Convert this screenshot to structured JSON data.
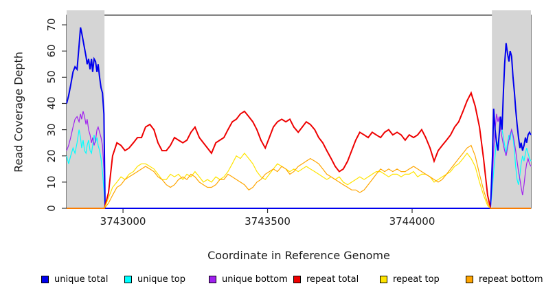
{
  "figure": {
    "background": "#ffffff"
  },
  "chart_data": {
    "type": "line",
    "title": "",
    "xlabel": "Coordinate in Reference Genome",
    "ylabel": "Read Coverage Depth",
    "xlim": [
      3742805,
      3744411
    ],
    "ylim": [
      0,
      73.7
    ],
    "xticks": [
      3743000,
      3743500,
      3744000
    ],
    "yticks": [
      0,
      10,
      20,
      30,
      40,
      50,
      60,
      70
    ],
    "grid": false,
    "legend_position": "bottom",
    "axis_color": "#000000",
    "shade_color": "#d5d5d5",
    "shaded_regions": [
      [
        3742805,
        3742936
      ],
      [
        3744276,
        3744411
      ]
    ],
    "series": [
      {
        "name": "unique total",
        "color": "#0000ee",
        "z": 3,
        "line_width": 2,
        "x": [
          3742805,
          3742812,
          3742819,
          3742827,
          3742834,
          3742841,
          3742848,
          3742853,
          3742857,
          3742862,
          3742867,
          3742872,
          3742876,
          3742881,
          3742886,
          3742891,
          3742895,
          3742900,
          3742905,
          3742910,
          3742914,
          3742919,
          3742924,
          3742929,
          3742934,
          3742938,
          3744271,
          3744278,
          3744282,
          3744287,
          3744292,
          3744297,
          3744301,
          3744306,
          3744311,
          3744316,
          3744320,
          3744325,
          3744330,
          3744335,
          3744339,
          3744344,
          3744349,
          3744354,
          3744358,
          3744363,
          3744368,
          3744373,
          3744377,
          3744382,
          3744387,
          3744392,
          3744396,
          3744401,
          3744406,
          3744411
        ],
        "y": [
          40,
          43,
          47,
          52,
          54,
          53,
          62,
          69,
          67,
          64,
          61,
          58,
          55,
          57,
          53,
          57,
          52,
          57,
          56,
          52,
          55,
          50,
          46,
          44,
          36,
          0,
          0,
          20,
          38,
          30,
          25,
          22,
          28,
          35,
          30,
          45,
          55,
          63,
          59,
          56,
          60,
          58,
          50,
          44,
          38,
          32,
          27,
          23,
          25,
          22,
          24,
          27,
          25,
          28,
          29,
          28
        ]
      },
      {
        "name": "unique top",
        "color": "#00ffff",
        "z": 1,
        "line_width": 1.2,
        "x": [
          3742805,
          3742812,
          3742819,
          3742827,
          3742834,
          3742841,
          3742848,
          3742853,
          3742857,
          3742862,
          3742867,
          3742872,
          3742876,
          3742881,
          3742886,
          3742891,
          3742895,
          3742900,
          3742905,
          3742910,
          3742914,
          3742919,
          3742924,
          3742929,
          3742934,
          3742938,
          3744271,
          3744278,
          3744282,
          3744287,
          3744292,
          3744297,
          3744301,
          3744306,
          3744311,
          3744316,
          3744320,
          3744325,
          3744330,
          3744335,
          3744339,
          3744344,
          3744349,
          3744354,
          3744358,
          3744363,
          3744368,
          3744373,
          3744377,
          3744382,
          3744387,
          3744392,
          3744396,
          3744401,
          3744406,
          3744411
        ],
        "y": [
          20,
          17,
          20,
          23,
          21,
          25,
          30,
          27,
          23,
          26,
          22,
          21,
          24,
          26,
          22,
          21,
          24,
          28,
          25,
          27,
          24,
          22,
          19,
          14,
          7,
          0,
          0,
          8,
          14,
          20,
          26,
          24,
          29,
          32,
          30,
          27,
          24,
          21,
          25,
          28,
          26,
          30,
          27,
          22,
          16,
          11,
          9,
          13,
          17,
          20,
          18,
          21,
          23,
          21,
          19,
          18
        ]
      },
      {
        "name": "unique bottom",
        "color": "#a020f0",
        "z": 2,
        "line_width": 1.2,
        "x": [
          3742805,
          3742812,
          3742819,
          3742827,
          3742834,
          3742841,
          3742848,
          3742853,
          3742857,
          3742862,
          3742867,
          3742872,
          3742876,
          3742881,
          3742886,
          3742891,
          3742895,
          3742900,
          3742905,
          3742910,
          3742914,
          3742919,
          3742924,
          3742929,
          3742934,
          3742938,
          3744271,
          3744278,
          3744282,
          3744287,
          3744292,
          3744297,
          3744301,
          3744306,
          3744311,
          3744316,
          3744320,
          3744325,
          3744330,
          3744335,
          3744339,
          3744344,
          3744349,
          3744354,
          3744358,
          3744363,
          3744368,
          3744373,
          3744377,
          3744382,
          3744387,
          3744392,
          3744396,
          3744401,
          3744406,
          3744411
        ],
        "y": [
          22,
          24,
          27,
          31,
          34,
          35,
          33,
          36,
          34,
          37,
          35,
          32,
          34,
          30,
          28,
          25,
          27,
          24,
          26,
          30,
          31,
          29,
          27,
          24,
          15,
          0,
          0,
          12,
          22,
          30,
          36,
          33,
          35,
          30,
          27,
          24,
          22,
          20,
          23,
          26,
          28,
          30,
          28,
          25,
          22,
          18,
          14,
          11,
          8,
          5,
          9,
          14,
          17,
          19,
          17,
          16
        ]
      },
      {
        "name": "repeat total",
        "color": "#ee0000",
        "z": 4,
        "line_width": 2,
        "x": [
          3742805,
          3742936,
          3742950,
          3742964,
          3742979,
          3742993,
          3743007,
          3743021,
          3743036,
          3743050,
          3743064,
          3743078,
          3743093,
          3743107,
          3743121,
          3743135,
          3743150,
          3743164,
          3743178,
          3743192,
          3743207,
          3743221,
          3743235,
          3743249,
          3743264,
          3743278,
          3743292,
          3743306,
          3743321,
          3743335,
          3743349,
          3743363,
          3743378,
          3743392,
          3743406,
          3743420,
          3743435,
          3743449,
          3743463,
          3743477,
          3743492,
          3743506,
          3743520,
          3743534,
          3743549,
          3743563,
          3743577,
          3743591,
          3743606,
          3743620,
          3743634,
          3743648,
          3743663,
          3743677,
          3743691,
          3743705,
          3743720,
          3743734,
          3743748,
          3743762,
          3743777,
          3743791,
          3743805,
          3743819,
          3743834,
          3743848,
          3743862,
          3743876,
          3743891,
          3743905,
          3743919,
          3743933,
          3743948,
          3743962,
          3743976,
          3743990,
          3744005,
          3744019,
          3744033,
          3744047,
          3744062,
          3744076,
          3744090,
          3744104,
          3744119,
          3744133,
          3744147,
          3744161,
          3744176,
          3744190,
          3744204,
          3744218,
          3744233,
          3744247,
          3744261,
          3744271,
          3744273,
          3744411
        ],
        "y": [
          0,
          0,
          6,
          20,
          25,
          24,
          22,
          23,
          25,
          27,
          27,
          31,
          32,
          30,
          25,
          22,
          22,
          24,
          27,
          26,
          25,
          26,
          29,
          31,
          27,
          25,
          23,
          21,
          25,
          26,
          27,
          30,
          33,
          34,
          36,
          37,
          35,
          33,
          30,
          26,
          23,
          27,
          31,
          33,
          34,
          33,
          34,
          31,
          29,
          31,
          33,
          32,
          30,
          27,
          25,
          22,
          19,
          16,
          14,
          15,
          18,
          22,
          26,
          29,
          28,
          27,
          29,
          28,
          27,
          29,
          30,
          28,
          29,
          28,
          26,
          28,
          27,
          28,
          30,
          27,
          23,
          18,
          22,
          24,
          26,
          28,
          31,
          33,
          37,
          41,
          44,
          39,
          31,
          19,
          5,
          0,
          0,
          0
        ]
      },
      {
        "name": "repeat top",
        "color": "#ffe400",
        "z": 5,
        "line_width": 1.2,
        "x": [
          3742805,
          3742936,
          3742950,
          3742964,
          3742979,
          3742993,
          3743007,
          3743021,
          3743036,
          3743050,
          3743064,
          3743078,
          3743093,
          3743107,
          3743121,
          3743135,
          3743150,
          3743164,
          3743178,
          3743192,
          3743207,
          3743221,
          3743235,
          3743249,
          3743264,
          3743278,
          3743292,
          3743306,
          3743321,
          3743335,
          3743349,
          3743363,
          3743378,
          3743392,
          3743406,
          3743420,
          3743435,
          3743449,
          3743463,
          3743477,
          3743492,
          3743506,
          3743520,
          3743534,
          3743549,
          3743563,
          3743577,
          3743591,
          3743606,
          3743620,
          3743634,
          3743648,
          3743663,
          3743677,
          3743691,
          3743705,
          3743720,
          3743734,
          3743748,
          3743762,
          3743777,
          3743791,
          3743805,
          3743819,
          3743834,
          3743848,
          3743862,
          3743876,
          3743891,
          3743905,
          3743919,
          3743933,
          3743948,
          3743962,
          3743976,
          3743990,
          3744005,
          3744019,
          3744033,
          3744047,
          3744062,
          3744076,
          3744090,
          3744104,
          3744119,
          3744133,
          3744147,
          3744161,
          3744176,
          3744190,
          3744204,
          3744218,
          3744233,
          3744247,
          3744261,
          3744271,
          3744273,
          3744411
        ],
        "y": [
          0,
          0,
          4,
          8,
          10,
          12,
          11,
          13,
          14,
          16,
          17,
          17,
          16,
          15,
          13,
          11,
          11,
          13,
          12,
          13,
          11,
          13,
          12,
          14,
          12,
          10,
          11,
          10,
          12,
          11,
          12,
          14,
          17,
          20,
          19,
          21,
          19,
          17,
          14,
          12,
          11,
          13,
          15,
          17,
          16,
          15,
          14,
          15,
          14,
          15,
          16,
          15,
          14,
          13,
          12,
          11,
          12,
          11,
          12,
          10,
          9,
          10,
          11,
          12,
          11,
          12,
          13,
          14,
          14,
          13,
          12,
          13,
          13,
          12,
          13,
          13,
          14,
          12,
          13,
          13,
          12,
          10,
          11,
          12,
          13,
          14,
          16,
          17,
          19,
          21,
          19,
          16,
          10,
          5,
          1,
          0,
          0,
          0
        ]
      },
      {
        "name": "repeat bottom",
        "color": "#ffa500",
        "z": 6,
        "line_width": 1.2,
        "x": [
          3742805,
          3742936,
          3742950,
          3742964,
          3742979,
          3742993,
          3743007,
          3743021,
          3743036,
          3743050,
          3743064,
          3743078,
          3743093,
          3743107,
          3743121,
          3743135,
          3743150,
          3743164,
          3743178,
          3743192,
          3743207,
          3743221,
          3743235,
          3743249,
          3743264,
          3743278,
          3743292,
          3743306,
          3743321,
          3743335,
          3743349,
          3743363,
          3743378,
          3743392,
          3743406,
          3743420,
          3743435,
          3743449,
          3743463,
          3743477,
          3743492,
          3743506,
          3743520,
          3743534,
          3743549,
          3743563,
          3743577,
          3743591,
          3743606,
          3743620,
          3743634,
          3743648,
          3743663,
          3743677,
          3743691,
          3743705,
          3743720,
          3743734,
          3743748,
          3743762,
          3743777,
          3743791,
          3743805,
          3743819,
          3743834,
          3743848,
          3743862,
          3743876,
          3743891,
          3743905,
          3743919,
          3743933,
          3743948,
          3743962,
          3743976,
          3743990,
          3744005,
          3744019,
          3744033,
          3744047,
          3744062,
          3744076,
          3744090,
          3744104,
          3744119,
          3744133,
          3744147,
          3744161,
          3744176,
          3744190,
          3744204,
          3744218,
          3744233,
          3744247,
          3744261,
          3744271,
          3744273,
          3744411
        ],
        "y": [
          0,
          0,
          2,
          5,
          8,
          9,
          11,
          12,
          13,
          14,
          15,
          16,
          15,
          14,
          12,
          11,
          9,
          8,
          9,
          11,
          12,
          11,
          13,
          12,
          10,
          9,
          8,
          8,
          9,
          11,
          11,
          13,
          12,
          11,
          10,
          9,
          7,
          8,
          10,
          11,
          13,
          14,
          15,
          14,
          16,
          15,
          13,
          14,
          16,
          17,
          18,
          19,
          18,
          17,
          15,
          13,
          12,
          11,
          10,
          9,
          8,
          7,
          7,
          6,
          7,
          9,
          11,
          13,
          15,
          14,
          15,
          14,
          15,
          14,
          14,
          15,
          16,
          15,
          14,
          13,
          12,
          11,
          10,
          11,
          13,
          15,
          17,
          19,
          21,
          23,
          24,
          20,
          13,
          7,
          2,
          0,
          0,
          0
        ]
      }
    ]
  }
}
